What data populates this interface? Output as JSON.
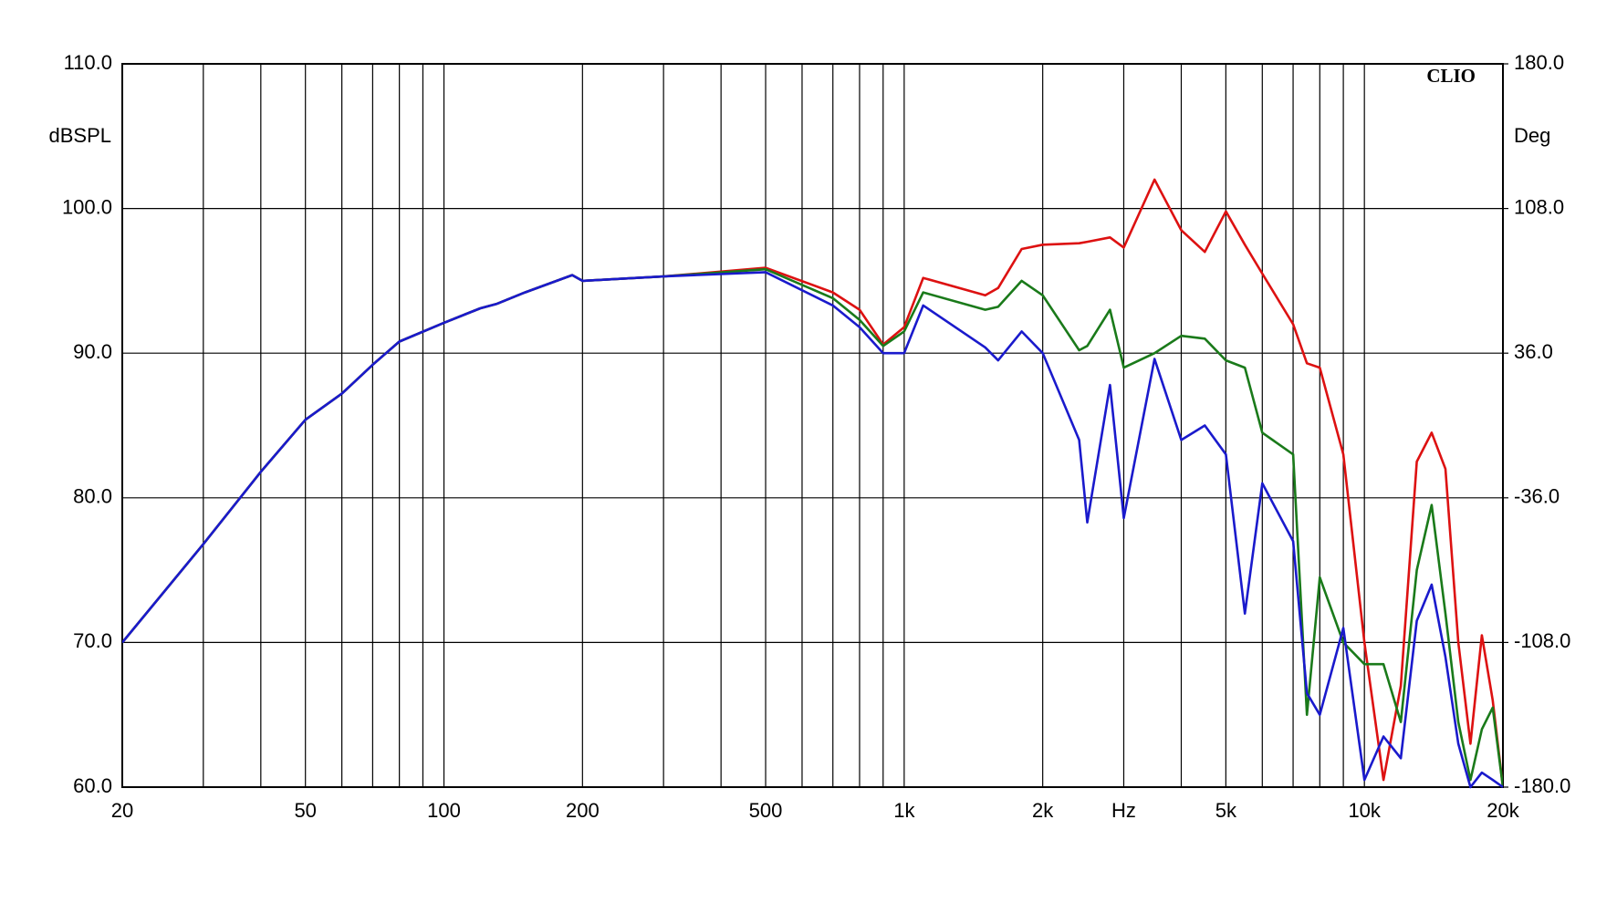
{
  "chart_data": {
    "type": "line",
    "watermark": "CLIO",
    "ylabel": "dBSPL",
    "y2label": "Deg",
    "log_x": true,
    "grid": true,
    "xlim": [
      20,
      20000
    ],
    "xticks": [
      20,
      50,
      100,
      200,
      500,
      {
        "value": 1000,
        "label": "1k"
      },
      {
        "value": 2000,
        "label": "2k"
      },
      {
        "value": 3000,
        "label": "Hz"
      },
      {
        "value": 5000,
        "label": "5k"
      },
      {
        "value": 10000,
        "label": "10k"
      },
      {
        "value": 20000,
        "label": "20k"
      }
    ],
    "xminorticks": [
      30,
      40,
      60,
      70,
      80,
      90,
      300,
      400,
      600,
      700,
      800,
      900,
      4000,
      6000,
      7000,
      8000,
      9000
    ],
    "xminorticks_low": [],
    "ylim": [
      60,
      110
    ],
    "yticks": [
      {
        "value": 60,
        "label": "60.0"
      },
      {
        "value": 70,
        "label": "70.0"
      },
      {
        "value": 80,
        "label": "80.0"
      },
      {
        "value": 90,
        "label": "90.0"
      },
      {
        "value": 100,
        "label": "100.0"
      },
      {
        "value": 110,
        "label": "110.0"
      }
    ],
    "y2lim": [
      -180,
      180
    ],
    "y2ticks": [
      {
        "value": -180,
        "label": "-180.0"
      },
      {
        "value": -108,
        "label": "-108.0"
      },
      {
        "value": -36,
        "label": "-36.0"
      },
      {
        "value": 36,
        "label": "36.0"
      },
      {
        "value": 108,
        "label": "108.0"
      },
      {
        "value": 180,
        "label": "180.0"
      }
    ],
    "x": [
      20,
      30,
      40,
      50,
      60,
      70,
      80,
      100,
      120,
      130,
      150,
      190,
      200,
      300,
      500,
      700,
      800,
      900,
      1000,
      1100,
      1500,
      1600,
      1800,
      2000,
      2400,
      2500,
      2800,
      3000,
      3500,
      4000,
      4500,
      5000,
      5500,
      6000,
      7000,
      7500,
      8000,
      9000,
      10000,
      11000,
      12000,
      13000,
      14000,
      15000,
      16000,
      17000,
      18000,
      19000,
      20000
    ],
    "series": [
      {
        "name": "red",
        "color": "#dd1111",
        "values": [
          70,
          76.8,
          81.8,
          85.4,
          87.2,
          89.2,
          90.8,
          92.1,
          93.1,
          93.4,
          94.2,
          95.4,
          95.0,
          95.3,
          95.9,
          94.2,
          93.0,
          90.6,
          91.8,
          95.2,
          94.0,
          94.5,
          97.2,
          97.5,
          97.6,
          97.7,
          98.0,
          97.3,
          102.0,
          98.5,
          97.0,
          99.8,
          97.5,
          95.5,
          92.0,
          89.3,
          89.0,
          83.0,
          70.0,
          60.5,
          67.0,
          82.5,
          84.5,
          82.0,
          70.0,
          63.0,
          70.5,
          66.0,
          60.0
        ]
      },
      {
        "name": "green",
        "color": "#1a7a1a",
        "values": [
          70,
          76.8,
          81.8,
          85.4,
          87.2,
          89.2,
          90.8,
          92.1,
          93.1,
          93.4,
          94.2,
          95.4,
          95.0,
          95.3,
          95.8,
          93.8,
          92.3,
          90.5,
          91.5,
          94.2,
          93.0,
          93.2,
          95.0,
          94.0,
          90.2,
          90.5,
          93.0,
          89.0,
          90.0,
          91.2,
          91.0,
          89.5,
          89.0,
          84.5,
          83.0,
          65.0,
          74.5,
          70.0,
          68.5,
          68.5,
          64.5,
          75.0,
          79.5,
          72.0,
          64.5,
          60.5,
          64.0,
          65.5,
          60.0
        ]
      },
      {
        "name": "blue",
        "color": "#1a1acc",
        "values": [
          70,
          76.8,
          81.8,
          85.4,
          87.2,
          89.2,
          90.8,
          92.1,
          93.1,
          93.4,
          94.2,
          95.4,
          95.0,
          95.3,
          95.6,
          93.3,
          91.8,
          90.0,
          90.0,
          93.3,
          90.4,
          89.5,
          91.5,
          90.0,
          84.0,
          78.3,
          87.8,
          78.6,
          89.6,
          84.0,
          85.0,
          83.0,
          72.0,
          81.0,
          77.0,
          66.5,
          65.0,
          71.0,
          60.5,
          63.5,
          62.0,
          71.5,
          74.0,
          69.0,
          63.0,
          60.0,
          61.0,
          60.5,
          60.0
        ]
      }
    ]
  }
}
